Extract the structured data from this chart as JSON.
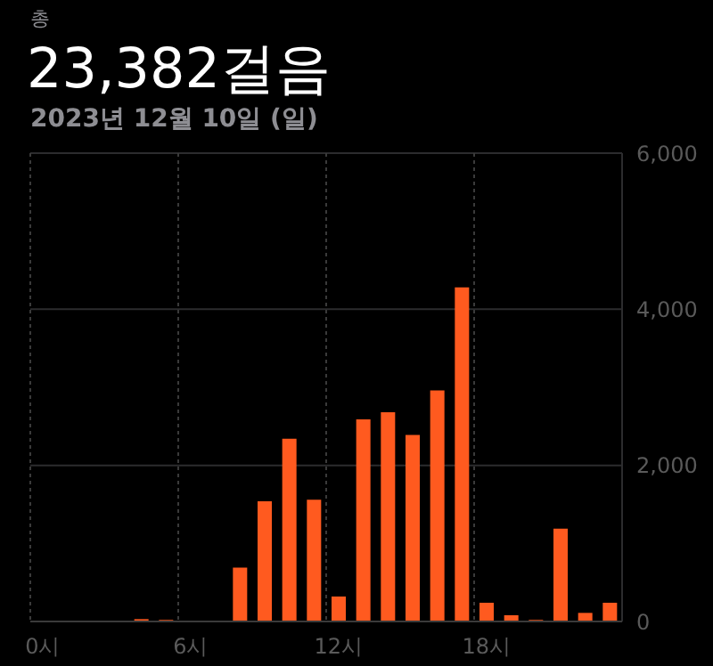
{
  "chart_data": {
    "type": "bar",
    "title": "23,382걸음",
    "subtitle": "2023년 12월 10일 (일)",
    "annotations": [
      "총"
    ],
    "categories": [
      "0시",
      null,
      null,
      null,
      null,
      null,
      "6시",
      null,
      null,
      null,
      null,
      null,
      "12시",
      null,
      null,
      null,
      null,
      null,
      "18시",
      null,
      null,
      null,
      null,
      null
    ],
    "values": [
      null,
      null,
      null,
      null,
      30,
      20,
      null,
      null,
      690,
      1540,
      2340,
      1560,
      320,
      2590,
      2680,
      2390,
      2960,
      4280,
      240,
      80,
      20,
      1190,
      110,
      240
    ],
    "color": "#ff5a1f",
    "ylim": [
      0,
      6000
    ],
    "yticks": [
      0,
      {
        "value": 2000,
        "label": "2,000"
      },
      {
        "value": 4000,
        "label": "4,000"
      },
      {
        "value": 6000,
        "label": "6,000"
      }
    ],
    "grid": true
  }
}
